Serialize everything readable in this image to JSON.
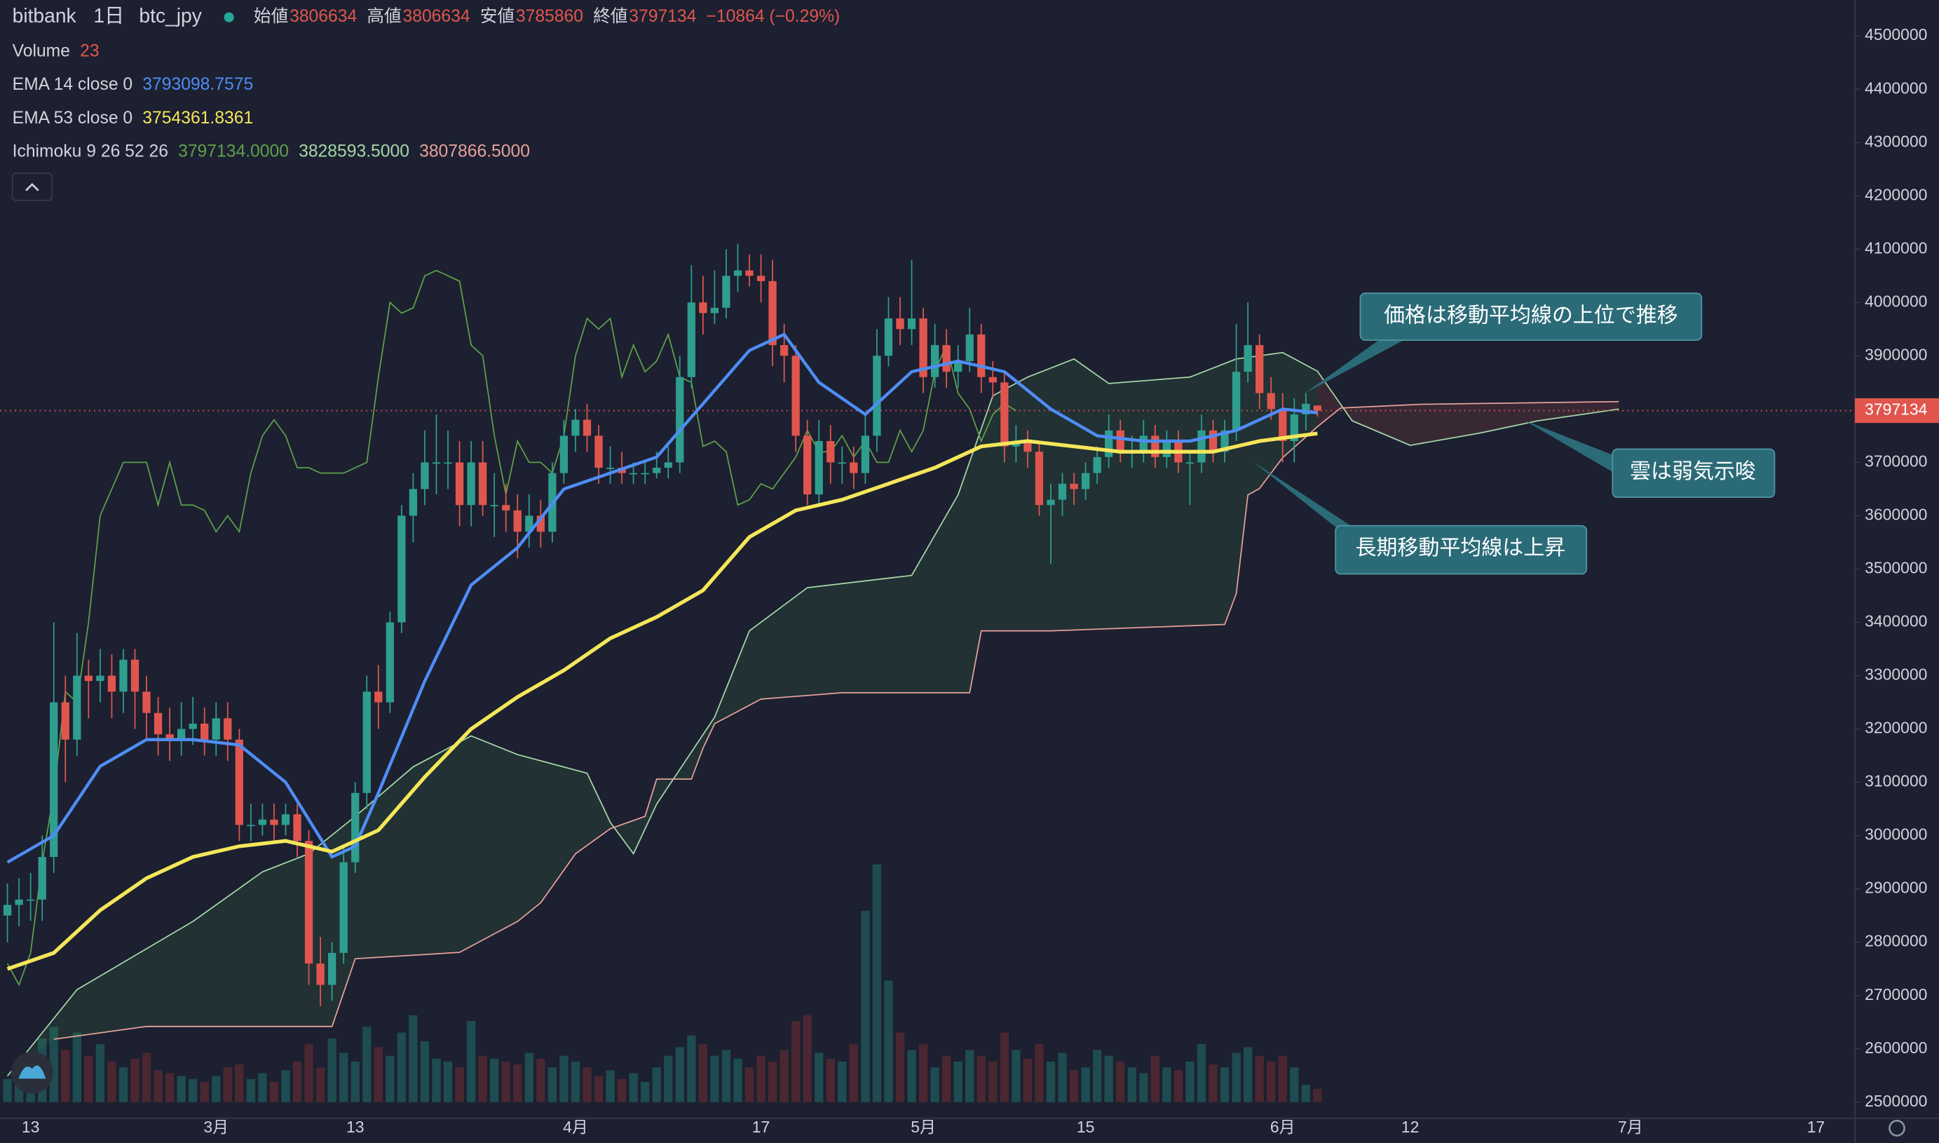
{
  "chart_data": {
    "type": "candlestick",
    "header": {
      "exchange": "bitbank",
      "interval": "1日",
      "symbol": "btc_jpy",
      "fields": [
        {
          "label": "始値",
          "value": "3806634"
        },
        {
          "label": "高値",
          "value": "3806634"
        },
        {
          "label": "安値",
          "value": "3785860"
        },
        {
          "label": "終値",
          "value": "3797134"
        }
      ],
      "change": "−10864 (−0.29%)"
    },
    "categories": [
      null,
      null,
      "13",
      null,
      null,
      null,
      null,
      null,
      null,
      null,
      null,
      null,
      null,
      null,
      null,
      null,
      null,
      null,
      "3月",
      null,
      null,
      null,
      null,
      null,
      null,
      null,
      null,
      null,
      null,
      null,
      "13",
      null,
      null,
      null,
      null,
      null,
      null,
      null,
      null,
      null,
      null,
      null,
      null,
      null,
      null,
      null,
      null,
      null,
      null,
      "4月",
      null,
      null,
      null,
      null,
      null,
      null,
      null,
      null,
      null,
      null,
      null,
      null,
      null,
      null,
      null,
      "17",
      null,
      null,
      null,
      null,
      null,
      null,
      null,
      null,
      null,
      null,
      null,
      null,
      null,
      "5月",
      null,
      null,
      null,
      null,
      null,
      null,
      null,
      null,
      null,
      null,
      null,
      null,
      null,
      "15",
      null,
      null,
      null,
      null,
      null,
      null,
      null,
      null,
      null,
      null,
      null,
      null,
      null,
      null,
      null,
      null,
      "6月",
      null,
      null,
      null,
      null,
      null,
      null,
      null,
      null,
      null,
      null,
      "12",
      null,
      null,
      null,
      null,
      null,
      null,
      null,
      null,
      null,
      null,
      null,
      null,
      null,
      null,
      null,
      null,
      null,
      null,
      "7月",
      null,
      null,
      null,
      null,
      null,
      null,
      null,
      null,
      null,
      null,
      null,
      null,
      null,
      null,
      null,
      "17",
      null,
      null,
      null
    ],
    "candles": [
      [
        2850000,
        2910000,
        2800000,
        2870000
      ],
      [
        2870000,
        2920000,
        2830000,
        2880000
      ],
      [
        2880000,
        2930000,
        2840000,
        2880000
      ],
      [
        2880000,
        3000000,
        2840000,
        2960000
      ],
      [
        2960000,
        3400000,
        2930000,
        3250000
      ],
      [
        3250000,
        3300000,
        3100000,
        3180000
      ],
      [
        3180000,
        3380000,
        3150000,
        3300000
      ],
      [
        3300000,
        3330000,
        3220000,
        3290000
      ],
      [
        3290000,
        3350000,
        3250000,
        3300000
      ],
      [
        3300000,
        3340000,
        3220000,
        3270000
      ],
      [
        3270000,
        3350000,
        3230000,
        3330000
      ],
      [
        3330000,
        3350000,
        3200000,
        3270000
      ],
      [
        3270000,
        3300000,
        3180000,
        3230000
      ],
      [
        3230000,
        3260000,
        3150000,
        3190000
      ],
      [
        3190000,
        3240000,
        3140000,
        3180000
      ],
      [
        3180000,
        3250000,
        3150000,
        3200000
      ],
      [
        3200000,
        3260000,
        3170000,
        3210000
      ],
      [
        3210000,
        3240000,
        3150000,
        3180000
      ],
      [
        3180000,
        3250000,
        3150000,
        3220000
      ],
      [
        3220000,
        3250000,
        3140000,
        3180000
      ],
      [
        3180000,
        3200000,
        2990000,
        3020000
      ],
      [
        3020000,
        3060000,
        2990000,
        3020000
      ],
      [
        3020000,
        3060000,
        3000000,
        3030000
      ],
      [
        3030000,
        3060000,
        2990000,
        3020000
      ],
      [
        3020000,
        3060000,
        3000000,
        3040000
      ],
      [
        3040000,
        3060000,
        2960000,
        2990000
      ],
      [
        2990000,
        3010000,
        2720000,
        2760000
      ],
      [
        2760000,
        2810000,
        2680000,
        2720000
      ],
      [
        2720000,
        2800000,
        2690000,
        2780000
      ],
      [
        2780000,
        2980000,
        2760000,
        2950000
      ],
      [
        2950000,
        3100000,
        2930000,
        3080000
      ],
      [
        3080000,
        3300000,
        3050000,
        3270000
      ],
      [
        3270000,
        3320000,
        3200000,
        3250000
      ],
      [
        3250000,
        3420000,
        3230000,
        3400000
      ],
      [
        3400000,
        3620000,
        3380000,
        3600000
      ],
      [
        3600000,
        3680000,
        3550000,
        3650000
      ],
      [
        3650000,
        3760000,
        3620000,
        3700000
      ],
      [
        3700000,
        3790000,
        3640000,
        3700000
      ],
      [
        3700000,
        3760000,
        3650000,
        3700000
      ],
      [
        3700000,
        3740000,
        3580000,
        3620000
      ],
      [
        3620000,
        3740000,
        3580000,
        3700000
      ],
      [
        3700000,
        3740000,
        3600000,
        3620000
      ],
      [
        3620000,
        3680000,
        3560000,
        3620000
      ],
      [
        3620000,
        3660000,
        3570000,
        3610000
      ],
      [
        3610000,
        3640000,
        3520000,
        3570000
      ],
      [
        3570000,
        3640000,
        3540000,
        3600000
      ],
      [
        3600000,
        3630000,
        3540000,
        3570000
      ],
      [
        3570000,
        3700000,
        3550000,
        3680000
      ],
      [
        3680000,
        3780000,
        3660000,
        3750000
      ],
      [
        3750000,
        3800000,
        3720000,
        3780000
      ],
      [
        3780000,
        3810000,
        3720000,
        3750000
      ],
      [
        3750000,
        3770000,
        3660000,
        3690000
      ],
      [
        3690000,
        3730000,
        3660000,
        3690000
      ],
      [
        3690000,
        3720000,
        3660000,
        3680000
      ],
      [
        3680000,
        3700000,
        3660000,
        3680000
      ],
      [
        3680000,
        3700000,
        3660000,
        3680000
      ],
      [
        3680000,
        3720000,
        3670000,
        3690000
      ],
      [
        3690000,
        3730000,
        3670000,
        3700000
      ],
      [
        3700000,
        3900000,
        3680000,
        3860000
      ],
      [
        3860000,
        4070000,
        3840000,
        4000000
      ],
      [
        4000000,
        4050000,
        3940000,
        3980000
      ],
      [
        3980000,
        4060000,
        3960000,
        3990000
      ],
      [
        3990000,
        4100000,
        3970000,
        4050000
      ],
      [
        4050000,
        4110000,
        4020000,
        4060000
      ],
      [
        4060000,
        4090000,
        4030000,
        4050000
      ],
      [
        4050000,
        4090000,
        4000000,
        4040000
      ],
      [
        4040000,
        4080000,
        3880000,
        3920000
      ],
      [
        3920000,
        3960000,
        3850000,
        3900000
      ],
      [
        3900000,
        3920000,
        3720000,
        3750000
      ],
      [
        3750000,
        3780000,
        3620000,
        3640000
      ],
      [
        3640000,
        3780000,
        3620000,
        3740000
      ],
      [
        3740000,
        3770000,
        3660000,
        3700000
      ],
      [
        3700000,
        3730000,
        3660000,
        3700000
      ],
      [
        3700000,
        3730000,
        3650000,
        3680000
      ],
      [
        3680000,
        3790000,
        3660000,
        3750000
      ],
      [
        3750000,
        3950000,
        3720000,
        3900000
      ],
      [
        3900000,
        4010000,
        3880000,
        3970000
      ],
      [
        3970000,
        4010000,
        3920000,
        3950000
      ],
      [
        3950000,
        4080000,
        3920000,
        3970000
      ],
      [
        3970000,
        3990000,
        3830000,
        3860000
      ],
      [
        3860000,
        3960000,
        3840000,
        3920000
      ],
      [
        3920000,
        3950000,
        3840000,
        3870000
      ],
      [
        3870000,
        3920000,
        3840000,
        3890000
      ],
      [
        3890000,
        3990000,
        3870000,
        3940000
      ],
      [
        3940000,
        3960000,
        3830000,
        3860000
      ],
      [
        3860000,
        3890000,
        3820000,
        3850000
      ],
      [
        3850000,
        3870000,
        3700000,
        3730000
      ],
      [
        3730000,
        3770000,
        3700000,
        3740000
      ],
      [
        3740000,
        3760000,
        3690000,
        3720000
      ],
      [
        3720000,
        3740000,
        3600000,
        3620000
      ],
      [
        3620000,
        3660000,
        3510000,
        3630000
      ],
      [
        3630000,
        3680000,
        3600000,
        3660000
      ],
      [
        3660000,
        3680000,
        3620000,
        3650000
      ],
      [
        3650000,
        3700000,
        3630000,
        3680000
      ],
      [
        3680000,
        3730000,
        3660000,
        3710000
      ],
      [
        3710000,
        3790000,
        3690000,
        3760000
      ],
      [
        3760000,
        3780000,
        3700000,
        3720000
      ],
      [
        3720000,
        3750000,
        3690000,
        3720000
      ],
      [
        3720000,
        3780000,
        3700000,
        3750000
      ],
      [
        3750000,
        3770000,
        3690000,
        3710000
      ],
      [
        3710000,
        3760000,
        3690000,
        3740000
      ],
      [
        3740000,
        3760000,
        3680000,
        3700000
      ],
      [
        3700000,
        3720000,
        3620000,
        3700000
      ],
      [
        3700000,
        3790000,
        3680000,
        3760000
      ],
      [
        3760000,
        3780000,
        3700000,
        3720000
      ],
      [
        3720000,
        3780000,
        3700000,
        3760000
      ],
      [
        3760000,
        3960000,
        3740000,
        3870000
      ],
      [
        3870000,
        4000000,
        3850000,
        3920000
      ],
      [
        3920000,
        3940000,
        3800000,
        3830000
      ],
      [
        3830000,
        3860000,
        3780000,
        3800000
      ],
      [
        3800000,
        3830000,
        3700000,
        3740000
      ],
      [
        3740000,
        3820000,
        3700000,
        3790000
      ],
      [
        3790000,
        3830000,
        3760000,
        3810000
      ],
      [
        3806634,
        3806634,
        3785860,
        3797134
      ]
    ],
    "up_color": "#2f9e8f",
    "down_color": "#e0564e",
    "ylim": [
      2467500,
      4567300
    ],
    "yticks": [
      2500000,
      2600000,
      2700000,
      2800000,
      2900000,
      3000000,
      3100000,
      3200000,
      3300000,
      3400000,
      3500000,
      3600000,
      3700000,
      3800000,
      3900000,
      4000000,
      4100000,
      4200000,
      4300000,
      4400000,
      4500000
    ],
    "volume": {
      "name": "Volume",
      "value_labels": [
        "23"
      ],
      "label_color": "#e0564e",
      "up_color": "#1e4c50",
      "down_color": "#4a2731",
      "ylim": [
        0,
        480
      ],
      "values": [
        40,
        60,
        80,
        110,
        130,
        90,
        120,
        80,
        100,
        70,
        60,
        75,
        85,
        55,
        50,
        45,
        40,
        35,
        45,
        60,
        65,
        40,
        50,
        35,
        55,
        70,
        100,
        60,
        110,
        85,
        70,
        130,
        95,
        80,
        120,
        150,
        105,
        75,
        70,
        60,
        140,
        80,
        75,
        70,
        65,
        85,
        75,
        60,
        80,
        70,
        60,
        45,
        55,
        40,
        50,
        35,
        60,
        80,
        95,
        115,
        100,
        80,
        90,
        75,
        60,
        80,
        70,
        90,
        140,
        150,
        85,
        75,
        70,
        100,
        330,
        410,
        210,
        120,
        90,
        100,
        60,
        80,
        70,
        90,
        80,
        70,
        120,
        90,
        75,
        100,
        70,
        85,
        55,
        60,
        90,
        80,
        70,
        60,
        50,
        80,
        60,
        55,
        70,
        100,
        65,
        60,
        85,
        95,
        80,
        70,
        80,
        60,
        30,
        23
      ]
    },
    "ema": [
      {
        "name": "EMA 14 close 0",
        "value_labels": [
          "3793098.7575"
        ],
        "color": "#4f8df5",
        "x": [
          0,
          4,
          8,
          12,
          16,
          20,
          24,
          28,
          30,
          32,
          36,
          40,
          44,
          48,
          52,
          56,
          60,
          64,
          67,
          70,
          74,
          78,
          82,
          86,
          90,
          94,
          98,
          102,
          106,
          110,
          113
        ],
        "values": [
          2950000,
          3000000,
          3130000,
          3180000,
          3180000,
          3170000,
          3100000,
          2960000,
          2980000,
          3080000,
          3290000,
          3470000,
          3540000,
          3650000,
          3680000,
          3710000,
          3810000,
          3910000,
          3940000,
          3850000,
          3790000,
          3870000,
          3890000,
          3870000,
          3800000,
          3750000,
          3740000,
          3740000,
          3760000,
          3800000,
          3793099
        ]
      },
      {
        "name": "EMA 53 close 0",
        "value_labels": [
          "3754361.8361"
        ],
        "color": "#f5e65a",
        "x": [
          0,
          4,
          8,
          12,
          16,
          20,
          24,
          28,
          32,
          36,
          40,
          44,
          48,
          52,
          56,
          60,
          64,
          68,
          72,
          76,
          80,
          84,
          88,
          92,
          96,
          100,
          104,
          108,
          113
        ],
        "values": [
          2750000,
          2780000,
          2860000,
          2920000,
          2960000,
          2980000,
          2990000,
          2970000,
          3010000,
          3110000,
          3200000,
          3260000,
          3310000,
          3370000,
          3410000,
          3460000,
          3560000,
          3610000,
          3630000,
          3660000,
          3690000,
          3730000,
          3740000,
          3730000,
          3720000,
          3720000,
          3720000,
          3740000,
          3754362
        ]
      }
    ],
    "ichimoku": {
      "name": "Ichimoku 9 26 52 26",
      "value_labels": [
        "3797134.0000",
        "3828593.5000",
        "3807866.5000"
      ],
      "colors": [
        "#5ea04a",
        "#a5d6a7",
        "#e8a09a"
      ],
      "span_a": {
        "x": [
          0,
          6,
          16,
          22,
          26,
          30,
          35,
          40,
          44,
          50,
          52,
          54,
          56,
          61,
          64,
          69,
          78,
          82,
          85,
          88,
          92,
          95,
          102,
          106,
          110,
          113,
          116,
          121,
          127,
          132,
          139
        ],
        "values": [
          2549000,
          2711000,
          2839000,
          2932000,
          2966000,
          3036000,
          3129000,
          3187000,
          3152000,
          3117000,
          3025000,
          2966000,
          3059000,
          3222000,
          3384000,
          3465000,
          3488000,
          3639000,
          3825000,
          3860000,
          3894000,
          3848000,
          3860000,
          3894000,
          3906000,
          3871000,
          3778000,
          3732000,
          3755000,
          3778000,
          3800000
        ]
      },
      "span_b": {
        "x": [
          4,
          12,
          28,
          30,
          39,
          44,
          46,
          49,
          52,
          55,
          56,
          59,
          60,
          61,
          65,
          72,
          83,
          84,
          90,
          105,
          106,
          107,
          108,
          110,
          113,
          115,
          122,
          139
        ],
        "values": [
          2618000,
          2642000,
          2642000,
          2769000,
          2781000,
          2839000,
          2874000,
          2966000,
          3013000,
          3036000,
          3106000,
          3106000,
          3164000,
          3210000,
          3256000,
          3268000,
          3268000,
          3384000,
          3384000,
          3396000,
          3454000,
          3639000,
          3651000,
          3709000,
          3767000,
          3802000,
          3809000,
          3814000
        ]
      }
    },
    "annotations": [
      "価格は移動平均線の上位で推移",
      "雲は弱気示唆",
      "長期移動平均線は上昇"
    ]
  }
}
